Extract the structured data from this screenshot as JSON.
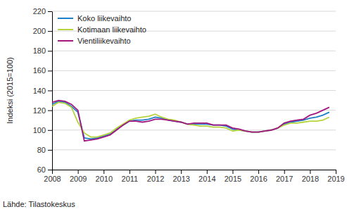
{
  "chart_data": {
    "type": "line",
    "y_label": "Indeksi (2015=100)",
    "source": "Lähde: Tilastokeskus",
    "x": [
      2008,
      2008.25,
      2008.5,
      2008.75,
      2009,
      2009.25,
      2009.5,
      2009.75,
      2010,
      2010.25,
      2010.5,
      2010.75,
      2011,
      2011.25,
      2011.5,
      2011.75,
      2012,
      2012.25,
      2012.5,
      2012.75,
      2013,
      2013.25,
      2013.5,
      2013.75,
      2014,
      2014.25,
      2014.5,
      2014.75,
      2015,
      2015.25,
      2015.5,
      2015.75,
      2016,
      2016.25,
      2016.5,
      2016.75,
      2017,
      2017.25,
      2017.5,
      2017.75,
      2018,
      2018.25,
      2018.5,
      2018.75
    ],
    "series": [
      {
        "name": "Koko liikevaihto",
        "color": "#1f7fc8",
        "values": [
          126,
          129,
          128,
          124,
          118,
          92,
          91,
          92,
          94,
          96,
          101,
          105,
          109,
          110,
          110,
          111,
          113,
          112,
          110,
          109,
          108,
          106,
          106,
          106,
          106,
          105,
          105,
          104,
          101,
          100,
          99,
          98,
          98,
          99,
          100,
          102,
          106,
          108,
          109,
          110,
          112,
          113,
          115,
          118
        ]
      },
      {
        "name": "Kotimaan liikevaihto",
        "color": "#b7d43f",
        "values": [
          124,
          128,
          127,
          123,
          108,
          97,
          93,
          93,
          95,
          97,
          102,
          106,
          110,
          112,
          113,
          114,
          116,
          113,
          111,
          110,
          108,
          106,
          105,
          104,
          104,
          103,
          103,
          102,
          99,
          100,
          99,
          98,
          98,
          99,
          100,
          102,
          105,
          107,
          107,
          108,
          109,
          109,
          110,
          113
        ]
      },
      {
        "name": "Vientiliikevaihto",
        "color": "#a3187f",
        "values": [
          128,
          130,
          129,
          126,
          120,
          89,
          90,
          91,
          93,
          95,
          100,
          105,
          109,
          109,
          108,
          109,
          111,
          111,
          110,
          109,
          108,
          106,
          107,
          107,
          107,
          105,
          105,
          105,
          102,
          101,
          99,
          98,
          98,
          99,
          100,
          102,
          107,
          109,
          110,
          111,
          115,
          117,
          120,
          123
        ]
      }
    ],
    "xlim": [
      2008,
      2019
    ],
    "xticks": [
      2008,
      2009,
      2010,
      2011,
      2012,
      2013,
      2014,
      2015,
      2016,
      2017,
      2018,
      2019
    ],
    "ylim": [
      60,
      220
    ],
    "yticks": [
      60,
      80,
      100,
      120,
      140,
      160,
      180,
      200,
      220
    ],
    "grid": true,
    "legend": "upper left"
  }
}
